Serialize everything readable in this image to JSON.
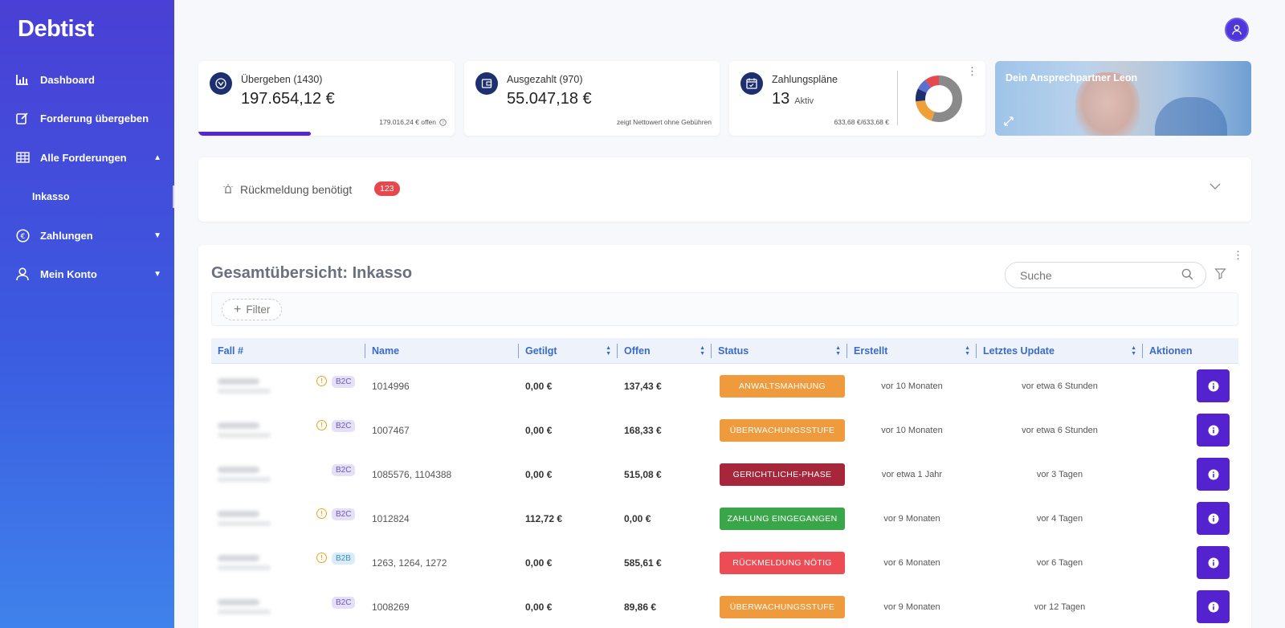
{
  "app": {
    "logo": "Debtist"
  },
  "sidebar": {
    "items": [
      {
        "label": "Dashboard"
      },
      {
        "label": "Forderung übergeben"
      },
      {
        "label": "Alle Forderungen"
      },
      {
        "label": "Inkasso"
      },
      {
        "label": "Zahlungen"
      },
      {
        "label": "Mein Konto"
      }
    ]
  },
  "stats": {
    "uebergeben": {
      "title": "Übergeben (1430)",
      "value": "197.654,12 €",
      "note": "179.016,24 € offen",
      "progress": 0.44
    },
    "ausgezahlt": {
      "title": "Ausgezahlt (970)",
      "value": "55.047,18 €",
      "note": "zeigt Nettowert ohne Gebühren"
    },
    "zahlungsplaene": {
      "title": "Zahlungspläne",
      "value": "13",
      "sub": "Aktiv",
      "note": "633,68 €/633,68 €"
    }
  },
  "contact": {
    "label": "Dein Ansprechpartner Leon"
  },
  "feedback": {
    "label": "Rückmeldung benötigt",
    "count": "123"
  },
  "overview": {
    "title": "Gesamtübersicht: Inkasso",
    "search_placeholder": "Suche",
    "filter_label": "Filter",
    "columns": [
      "Fall #",
      "Name",
      "Getilgt",
      "Offen",
      "Status",
      "Erstellt",
      "Letztes Update",
      "Aktionen"
    ],
    "rows": [
      {
        "warn": true,
        "type": "B2C",
        "name": "1014996",
        "getilgt": "0,00 €",
        "offen": "137,43 €",
        "status": "ANWALTSMAHNUNG",
        "status_color": "#ef9a3c",
        "erstellt": "vor 10 Monaten",
        "update": "vor etwa 6 Stunden"
      },
      {
        "warn": true,
        "type": "B2C",
        "name": "1007467",
        "getilgt": "0,00 €",
        "offen": "168,33 €",
        "status": "ÜBERWACHUNGSSTUFE",
        "status_color": "#ef9a3c",
        "erstellt": "vor 10 Monaten",
        "update": "vor etwa 6 Stunden"
      },
      {
        "warn": false,
        "type": "B2C",
        "name": "1085576, 1104388",
        "getilgt": "0,00 €",
        "offen": "515,08 €",
        "status": "GERICHTLICHE-PHASE",
        "status_color": "#a8263a",
        "erstellt": "vor etwa 1 Jahr",
        "update": "vor 3 Tagen"
      },
      {
        "warn": true,
        "type": "B2C",
        "name": "1012824",
        "getilgt": "112,72 €",
        "offen": "0,00 €",
        "status": "ZAHLUNG EINGEGANGEN",
        "status_color": "#3aa64a",
        "erstellt": "vor 9 Monaten",
        "update": "vor 4 Tagen"
      },
      {
        "warn": true,
        "type": "B2B",
        "name": "1263, 1264, 1272",
        "getilgt": "0,00 €",
        "offen": "585,61 €",
        "status": "RÜCKMELDUNG NÖTIG",
        "status_color": "#ee4c55",
        "erstellt": "vor 6 Monaten",
        "update": "vor 6 Tagen"
      },
      {
        "warn": false,
        "type": "B2C",
        "name": "1008269",
        "getilgt": "0,00 €",
        "offen": "89,86 €",
        "status": "ÜBERWACHUNGSSTUFE",
        "status_color": "#ef9a3c",
        "erstellt": "vor 9 Monaten",
        "update": "vor 12 Tagen"
      }
    ]
  },
  "donut": {
    "segments": [
      {
        "value": 0.55,
        "color": "#8a8a8a"
      },
      {
        "value": 0.18,
        "color": "#f0a03a"
      },
      {
        "value": 0.09,
        "color": "#1d2f6e"
      },
      {
        "value": 0.08,
        "color": "#5b6fd0"
      },
      {
        "value": 0.1,
        "color": "#e5484d"
      }
    ]
  }
}
